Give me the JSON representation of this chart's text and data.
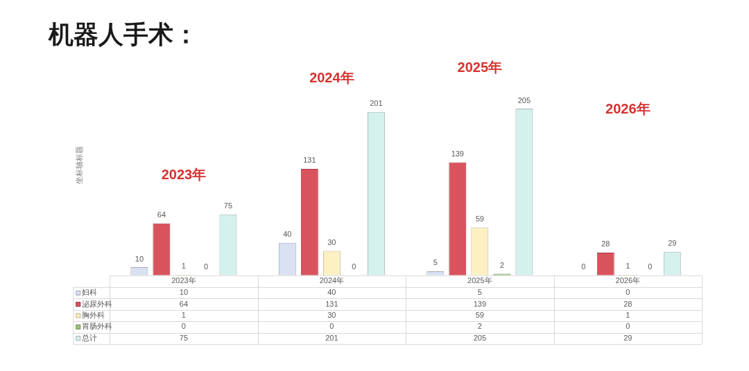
{
  "chart_data": {
    "type": "bar",
    "title": "机器人手术：",
    "ylabel": "坐标轴标题",
    "categories": [
      "2023年",
      "2024年",
      "2025年",
      "2026年"
    ],
    "series": [
      {
        "name": "妇科",
        "color": "#dae1f3",
        "values": [
          10,
          40,
          5,
          0
        ]
      },
      {
        "name": "泌尿外科",
        "color": "#d9535d",
        "values": [
          64,
          131,
          139,
          28
        ]
      },
      {
        "name": "胸外科",
        "color": "#fdf1c3",
        "values": [
          1,
          30,
          59,
          1
        ]
      },
      {
        "name": "胃肠外科",
        "color": "#9cc47a",
        "values": [
          0,
          0,
          2,
          0
        ]
      },
      {
        "name": "总计",
        "color": "#d5f1ed",
        "values": [
          75,
          201,
          205,
          29
        ]
      }
    ],
    "tick_labels": "x",
    "legend": "bottom",
    "data_labels": true,
    "annotations": [
      "2023年",
      "2024年",
      "2025年",
      "2026年",
      "10",
      "40",
      "5",
      "0",
      "64",
      "131",
      "139",
      "28",
      "1",
      "30",
      "59",
      "1",
      "0",
      "0",
      "2",
      "0",
      "75",
      "201",
      "205",
      "29"
    ]
  }
}
